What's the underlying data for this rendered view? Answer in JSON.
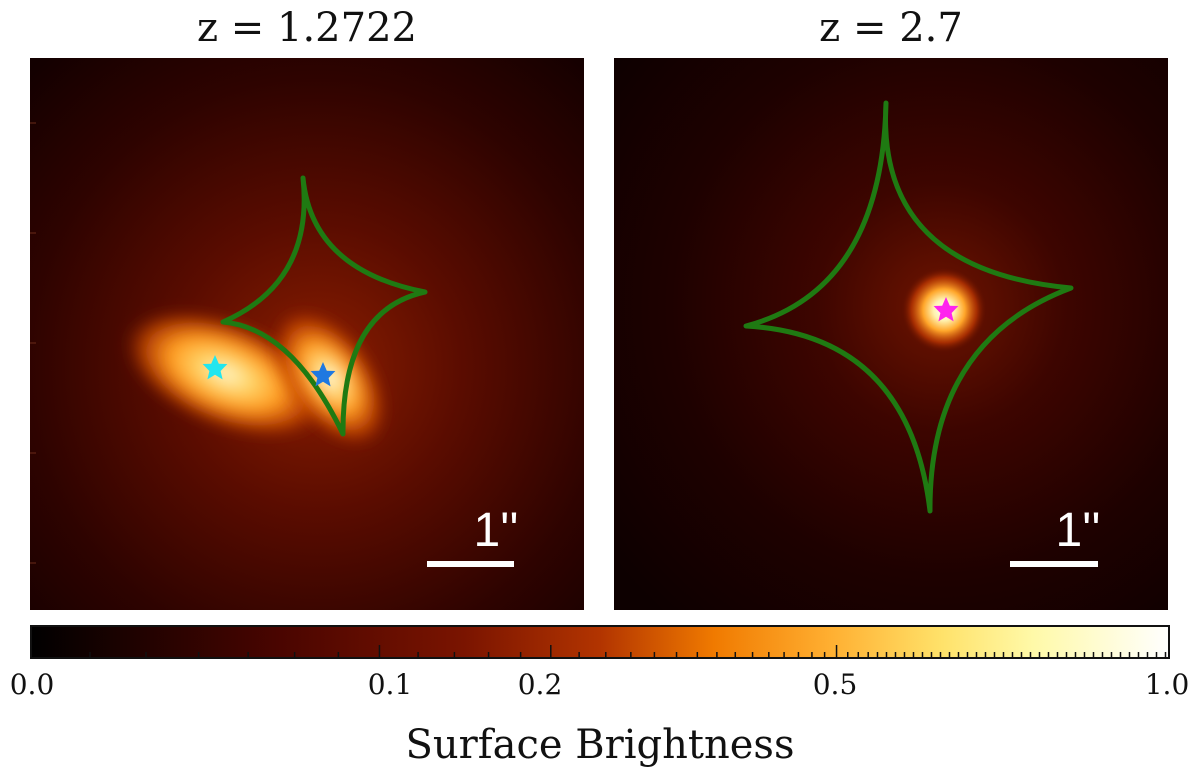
{
  "chart_data": [
    {
      "type": "heatmap",
      "title": "z = 1.2722",
      "grid": false,
      "scale_bar": {
        "label": "1''",
        "length_arcsec": 1
      },
      "caustic": {
        "color": "#1f7a12"
      },
      "sources": [
        {
          "marker": "star",
          "color": "#22e6ee"
        },
        {
          "marker": "star",
          "color": "#1f78e0"
        }
      ]
    },
    {
      "type": "heatmap",
      "title": "z = 2.7",
      "grid": false,
      "scale_bar": {
        "label": "1''",
        "length_arcsec": 1
      },
      "caustic": {
        "color": "#1f7a12"
      },
      "sources": [
        {
          "marker": "star",
          "color": "#ff22ee"
        }
      ]
    }
  ],
  "colorbar": {
    "label": "Surface Brightness",
    "scale": "log",
    "range": [
      0.0,
      1.0
    ],
    "colormap": "afmhot",
    "tick_labels": [
      "0.0",
      "0.1",
      "0.2",
      "0.5",
      "1.0"
    ]
  }
}
